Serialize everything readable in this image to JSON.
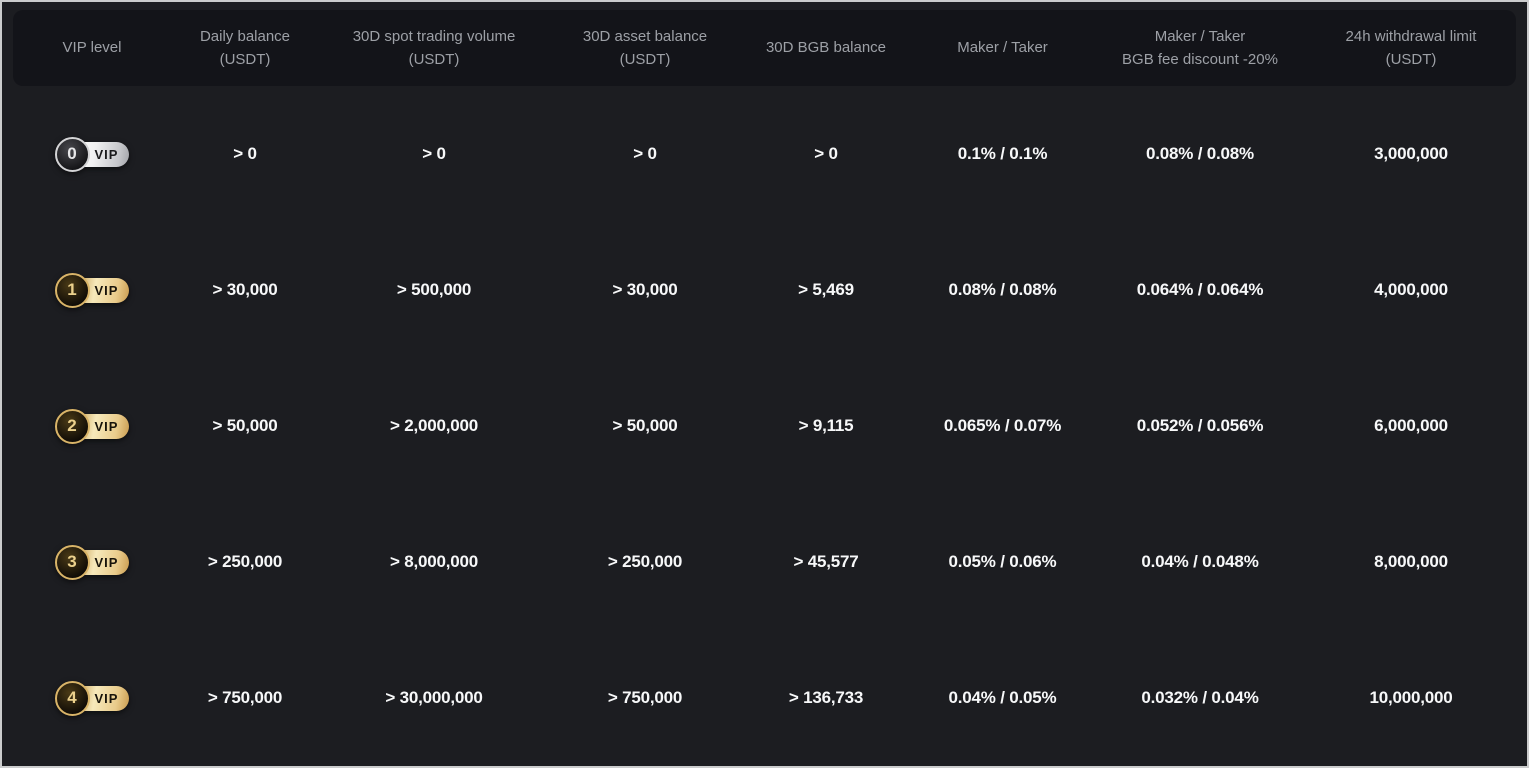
{
  "theme": {
    "page_bg": "#1c1d21",
    "header_bg": "#131419",
    "frame_border": "#cbcccd",
    "header_text": "#9da0a6",
    "cell_text": "#f7f8f9",
    "gold_accent": "#e9cb8b",
    "silver_accent": "#d4d4d6"
  },
  "table": {
    "columns": [
      {
        "label": "VIP level"
      },
      {
        "label": "Daily balance\n(USDT)"
      },
      {
        "label": "30D spot trading volume\n(USDT)"
      },
      {
        "label": "30D asset balance\n(USDT)"
      },
      {
        "label": "30D BGB balance"
      },
      {
        "label": "Maker / Taker"
      },
      {
        "label": "Maker / Taker\nBGB fee discount -20%"
      },
      {
        "label": "24h withdrawal limit\n(USDT)"
      }
    ],
    "rows": [
      {
        "level": "0",
        "badge_label": "VIP",
        "tier": "silver",
        "daily_balance": "> 0",
        "spot_volume": "> 0",
        "asset_balance": "> 0",
        "bgb_balance": "> 0",
        "maker_taker": "0.1% / 0.1%",
        "maker_taker_discount": "0.08% / 0.08%",
        "withdrawal_limit": "3,000,000"
      },
      {
        "level": "1",
        "badge_label": "VIP",
        "tier": "gold",
        "daily_balance": "> 30,000",
        "spot_volume": "> 500,000",
        "asset_balance": "> 30,000",
        "bgb_balance": "> 5,469",
        "maker_taker": "0.08% / 0.08%",
        "maker_taker_discount": "0.064% / 0.064%",
        "withdrawal_limit": "4,000,000"
      },
      {
        "level": "2",
        "badge_label": "VIP",
        "tier": "gold",
        "daily_balance": "> 50,000",
        "spot_volume": "> 2,000,000",
        "asset_balance": "> 50,000",
        "bgb_balance": "> 9,115",
        "maker_taker": "0.065% / 0.07%",
        "maker_taker_discount": "0.052% / 0.056%",
        "withdrawal_limit": "6,000,000"
      },
      {
        "level": "3",
        "badge_label": "VIP",
        "tier": "gold",
        "daily_balance": "> 250,000",
        "spot_volume": "> 8,000,000",
        "asset_balance": "> 250,000",
        "bgb_balance": "> 45,577",
        "maker_taker": "0.05% / 0.06%",
        "maker_taker_discount": "0.04% / 0.048%",
        "withdrawal_limit": "8,000,000"
      },
      {
        "level": "4",
        "badge_label": "VIP",
        "tier": "gold",
        "daily_balance": "> 750,000",
        "spot_volume": "> 30,000,000",
        "asset_balance": "> 750,000",
        "bgb_balance": "> 136,733",
        "maker_taker": "0.04% / 0.05%",
        "maker_taker_discount": "0.032% / 0.04%",
        "withdrawal_limit": "10,000,000"
      }
    ]
  }
}
